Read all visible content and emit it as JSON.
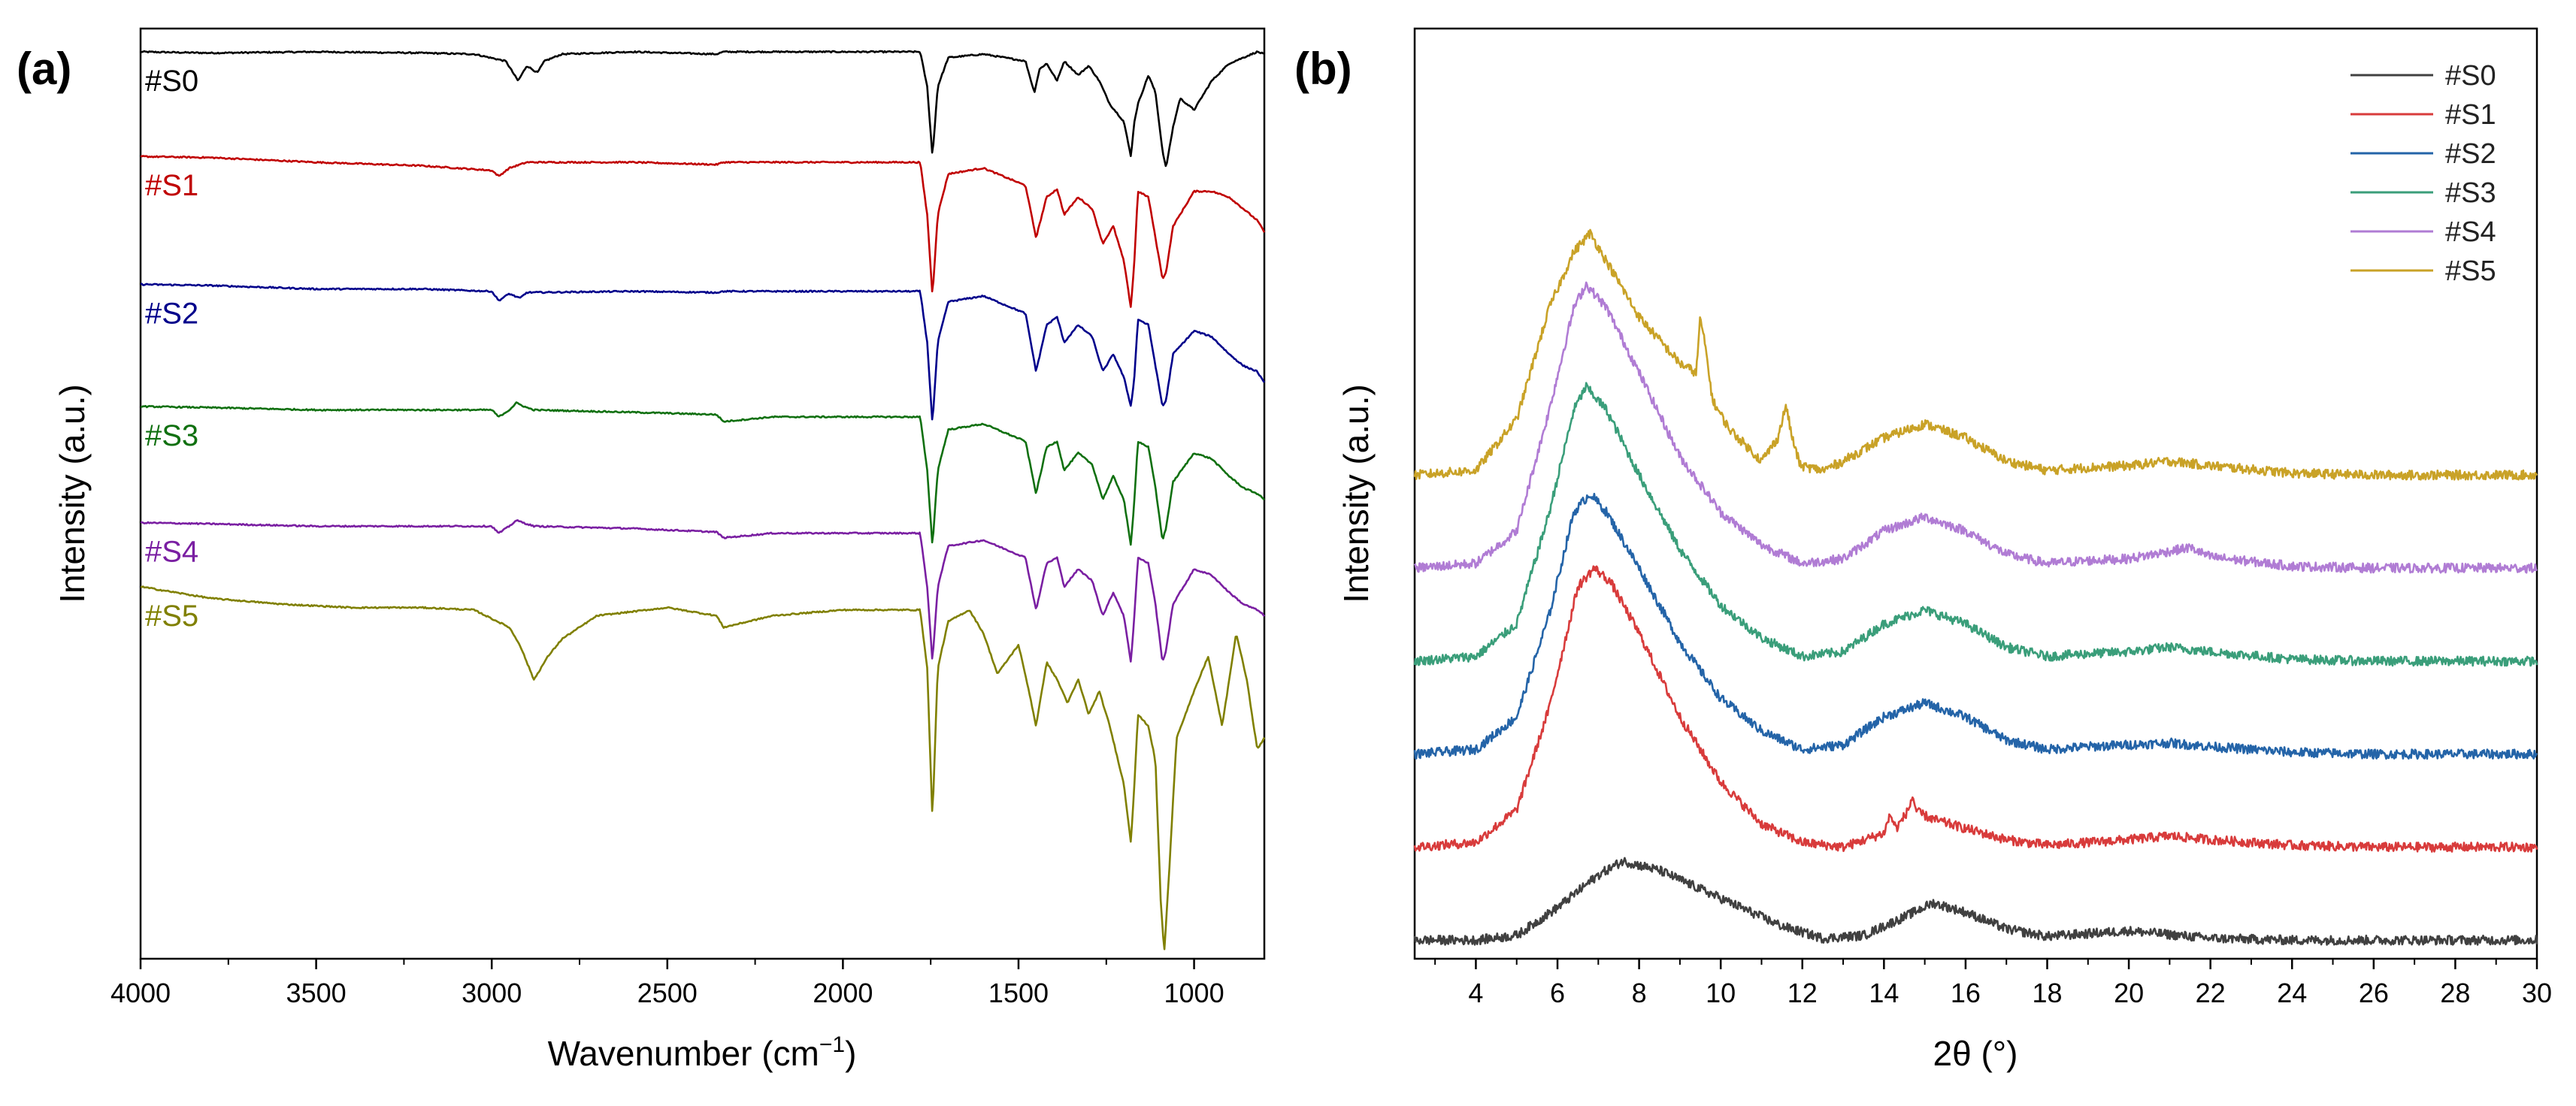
{
  "chart_data": [
    {
      "panel_label": "(a)",
      "type": "line",
      "title": "",
      "xlabel_main": "Wavenumber (cm",
      "xlabel_sup": "−1",
      "xlabel_end": ")",
      "ylabel": "Intensity (a.u.)",
      "xlim": [
        4000,
        800
      ],
      "x_reversed": true,
      "ylim": [
        0,
        8
      ],
      "y_ticks_visible": false,
      "xticks": [
        {
          "value": 4000,
          "label": "4000"
        },
        {
          "value": 3500,
          "label": "3500"
        },
        {
          "value": 3000,
          "label": "3000"
        },
        {
          "value": 2500,
          "label": "2500"
        },
        {
          "value": 2000,
          "label": "2000"
        },
        {
          "value": 1500,
          "label": "1500"
        },
        {
          "value": 1000,
          "label": "1000"
        }
      ],
      "grid": false,
      "legend": "inline labels at left",
      "series": [
        {
          "name": "#S0",
          "color": "#000000",
          "baseline": 7.8,
          "x": [
            4000,
            3800,
            3500,
            3200,
            3050,
            2960,
            2925,
            2900,
            2870,
            2850,
            2800,
            2600,
            2360,
            2340,
            2200,
            2000,
            1850,
            1780,
            1760,
            1745,
            1730,
            1700,
            1600,
            1480,
            1455,
            1440,
            1420,
            1390,
            1370,
            1330,
            1300,
            1270,
            1240,
            1200,
            1180,
            1170,
            1160,
            1130,
            1110,
            1090,
            1080,
            1060,
            1040,
            1000,
            950,
            900,
            860,
            820,
            800
          ],
          "y": [
            7.8,
            7.79,
            7.8,
            7.79,
            7.78,
            7.72,
            7.55,
            7.68,
            7.62,
            7.72,
            7.78,
            7.8,
            7.78,
            7.8,
            7.8,
            7.8,
            7.8,
            7.8,
            7.5,
            6.9,
            7.5,
            7.75,
            7.78,
            7.72,
            7.45,
            7.65,
            7.7,
            7.55,
            7.72,
            7.6,
            7.68,
            7.55,
            7.35,
            7.2,
            6.9,
            7.2,
            7.35,
            7.6,
            7.45,
            6.95,
            6.8,
            7.15,
            7.4,
            7.3,
            7.55,
            7.7,
            7.75,
            7.8,
            7.78
          ]
        },
        {
          "name": "#S1",
          "color": "#c00000",
          "baseline": 6.9,
          "x": [
            4000,
            3800,
            3500,
            3200,
            3000,
            2980,
            2950,
            2900,
            2600,
            2360,
            2340,
            2000,
            1850,
            1780,
            1760,
            1745,
            1730,
            1700,
            1600,
            1480,
            1450,
            1420,
            1390,
            1370,
            1330,
            1290,
            1260,
            1230,
            1200,
            1180,
            1170,
            1160,
            1130,
            1110,
            1090,
            1080,
            1060,
            1000,
            950,
            900,
            860,
            820,
            800
          ],
          "y": [
            6.9,
            6.89,
            6.85,
            6.82,
            6.78,
            6.73,
            6.8,
            6.85,
            6.85,
            6.83,
            6.85,
            6.85,
            6.85,
            6.85,
            6.4,
            5.7,
            6.4,
            6.75,
            6.8,
            6.65,
            6.2,
            6.55,
            6.62,
            6.4,
            6.55,
            6.45,
            6.15,
            6.3,
            6.0,
            5.6,
            6.0,
            6.6,
            6.55,
            6.2,
            5.85,
            5.9,
            6.3,
            6.6,
            6.6,
            6.55,
            6.45,
            6.35,
            6.25
          ]
        },
        {
          "name": "#S2",
          "color": "#00008b",
          "baseline": 5.8,
          "x": [
            4000,
            3800,
            3500,
            3200,
            3000,
            2980,
            2950,
            2920,
            2900,
            2600,
            2360,
            2340,
            2000,
            1850,
            1780,
            1760,
            1745,
            1730,
            1700,
            1600,
            1480,
            1450,
            1420,
            1390,
            1370,
            1330,
            1290,
            1260,
            1230,
            1200,
            1180,
            1170,
            1160,
            1130,
            1110,
            1090,
            1080,
            1060,
            1000,
            950,
            900,
            860,
            820,
            800
          ],
          "y": [
            5.8,
            5.79,
            5.76,
            5.76,
            5.74,
            5.66,
            5.72,
            5.68,
            5.73,
            5.74,
            5.73,
            5.74,
            5.74,
            5.74,
            5.74,
            5.3,
            4.6,
            5.3,
            5.65,
            5.7,
            5.55,
            5.05,
            5.45,
            5.52,
            5.3,
            5.45,
            5.35,
            5.05,
            5.2,
            5.0,
            4.75,
            5.0,
            5.5,
            5.45,
            5.1,
            4.75,
            4.8,
            5.2,
            5.4,
            5.35,
            5.2,
            5.1,
            5.05,
            4.95
          ]
        },
        {
          "name": "#S3",
          "color": "#107010",
          "baseline": 4.75,
          "x": [
            4000,
            3800,
            3500,
            3200,
            3000,
            2980,
            2950,
            2930,
            2900,
            2880,
            2600,
            2360,
            2340,
            2200,
            2000,
            1850,
            1780,
            1760,
            1745,
            1730,
            1700,
            1600,
            1480,
            1450,
            1420,
            1390,
            1370,
            1330,
            1290,
            1260,
            1230,
            1200,
            1180,
            1170,
            1160,
            1130,
            1110,
            1090,
            1080,
            1060,
            1000,
            950,
            900,
            860,
            820,
            800
          ],
          "y": [
            4.75,
            4.74,
            4.72,
            4.72,
            4.72,
            4.66,
            4.72,
            4.78,
            4.74,
            4.72,
            4.7,
            4.68,
            4.62,
            4.66,
            4.66,
            4.66,
            4.66,
            4.2,
            3.55,
            4.2,
            4.55,
            4.6,
            4.45,
            4.0,
            4.4,
            4.45,
            4.2,
            4.35,
            4.25,
            3.95,
            4.15,
            3.95,
            3.55,
            3.95,
            4.45,
            4.4,
            4.05,
            3.6,
            3.7,
            4.1,
            4.35,
            4.3,
            4.15,
            4.05,
            4.0,
            3.95
          ]
        },
        {
          "name": "#S4",
          "color": "#7a1fa2",
          "baseline": 3.75,
          "x": [
            4000,
            3800,
            3500,
            3200,
            3000,
            2980,
            2950,
            2930,
            2900,
            2880,
            2600,
            2360,
            2340,
            2200,
            2000,
            1850,
            1780,
            1760,
            1745,
            1730,
            1700,
            1600,
            1480,
            1450,
            1420,
            1390,
            1370,
            1330,
            1290,
            1260,
            1230,
            1200,
            1180,
            1170,
            1160,
            1130,
            1110,
            1090,
            1080,
            1060,
            1000,
            950,
            900,
            860,
            820,
            800
          ],
          "y": [
            3.75,
            3.74,
            3.72,
            3.72,
            3.72,
            3.66,
            3.72,
            3.77,
            3.74,
            3.72,
            3.7,
            3.67,
            3.62,
            3.66,
            3.66,
            3.66,
            3.66,
            3.2,
            2.55,
            3.2,
            3.55,
            3.6,
            3.45,
            3.0,
            3.4,
            3.45,
            3.2,
            3.35,
            3.25,
            2.95,
            3.15,
            2.95,
            2.55,
            2.95,
            3.45,
            3.4,
            3.05,
            2.55,
            2.65,
            3.05,
            3.35,
            3.3,
            3.15,
            3.05,
            3.0,
            2.95
          ]
        },
        {
          "name": "#S5",
          "color": "#808000",
          "baseline": 3.2,
          "x": [
            4000,
            3900,
            3800,
            3600,
            3400,
            3200,
            3050,
            2950,
            2920,
            2880,
            2840,
            2800,
            2700,
            2500,
            2360,
            2340,
            2200,
            2000,
            1850,
            1780,
            1760,
            1745,
            1730,
            1700,
            1640,
            1600,
            1560,
            1500,
            1470,
            1450,
            1420,
            1390,
            1360,
            1330,
            1300,
            1270,
            1240,
            1200,
            1180,
            1170,
            1160,
            1130,
            1110,
            1095,
            1085,
            1070,
            1050,
            1000,
            960,
            920,
            880,
            850,
            820,
            800
          ],
          "y": [
            3.2,
            3.15,
            3.1,
            3.05,
            3.02,
            3.02,
            3.0,
            2.85,
            2.7,
            2.4,
            2.6,
            2.75,
            2.95,
            3.02,
            2.95,
            2.85,
            2.95,
            3.0,
            3.0,
            3.0,
            2.5,
            1.2,
            2.5,
            2.9,
            3.0,
            2.8,
            2.45,
            2.7,
            2.3,
            2.0,
            2.55,
            2.4,
            2.2,
            2.4,
            2.1,
            2.3,
            2.0,
            1.5,
            1.0,
            1.5,
            2.1,
            2.0,
            1.7,
            0.5,
            0.05,
            0.8,
            1.9,
            2.3,
            2.6,
            2.0,
            2.8,
            2.4,
            1.8,
            1.9
          ]
        }
      ]
    },
    {
      "panel_label": "(b)",
      "type": "line",
      "title": "",
      "xlabel": "2θ (°)",
      "ylabel": "Intensity (a.u.)",
      "xlim": [
        2.5,
        30
      ],
      "ylim": [
        0,
        10
      ],
      "y_ticks_visible": false,
      "xticks": [
        {
          "value": 4,
          "label": "4"
        },
        {
          "value": 6,
          "label": "6"
        },
        {
          "value": 8,
          "label": "8"
        },
        {
          "value": 10,
          "label": "10"
        },
        {
          "value": 12,
          "label": "12"
        },
        {
          "value": 14,
          "label": "14"
        },
        {
          "value": 16,
          "label": "16"
        },
        {
          "value": 18,
          "label": "18"
        },
        {
          "value": 20,
          "label": "20"
        },
        {
          "value": 22,
          "label": "22"
        },
        {
          "value": 24,
          "label": "24"
        },
        {
          "value": 26,
          "label": "26"
        },
        {
          "value": 28,
          "label": "28"
        },
        {
          "value": 30,
          "label": "30"
        }
      ],
      "grid": false,
      "legend": "top-right",
      "series": [
        {
          "name": "#S0",
          "color": "#404040",
          "baseline": 0.2,
          "x": [
            2.5,
            4,
            5,
            6,
            7,
            7.6,
            8.5,
            9.5,
            10.5,
            11.5,
            12.5,
            13.5,
            14.5,
            15.2,
            16,
            17,
            18,
            20,
            22,
            24,
            26,
            28,
            30
          ],
          "y": [
            0.2,
            0.2,
            0.25,
            0.55,
            0.9,
            1.05,
            0.95,
            0.75,
            0.55,
            0.35,
            0.22,
            0.25,
            0.45,
            0.6,
            0.5,
            0.32,
            0.24,
            0.3,
            0.22,
            0.2,
            0.2,
            0.2,
            0.2
          ]
        },
        {
          "name": "#S1",
          "color": "#d83b3b",
          "baseline": 1.2,
          "x": [
            2.5,
            4,
            5,
            5.8,
            6.5,
            6.9,
            7.3,
            8,
            9,
            10,
            11,
            12,
            13,
            14,
            14.15,
            14.3,
            14.6,
            14.7,
            14.8,
            15.2,
            16,
            17,
            18,
            19,
            20,
            21,
            22,
            24,
            26,
            28,
            30
          ],
          "y": [
            1.2,
            1.25,
            1.6,
            2.7,
            4.0,
            4.2,
            4.05,
            3.5,
            2.6,
            1.9,
            1.45,
            1.25,
            1.2,
            1.35,
            1.55,
            1.4,
            1.6,
            1.75,
            1.58,
            1.5,
            1.4,
            1.28,
            1.22,
            1.25,
            1.28,
            1.32,
            1.28,
            1.22,
            1.2,
            1.2,
            1.2
          ]
        },
        {
          "name": "#S2",
          "color": "#2464a8",
          "baseline": 2.2,
          "x": [
            2.5,
            4,
            5,
            5.8,
            6.4,
            6.8,
            7.2,
            8,
            9,
            10,
            11,
            12,
            13,
            14,
            15,
            16,
            17,
            18,
            19,
            20,
            21,
            22,
            24,
            26,
            28,
            30
          ],
          "y": [
            2.2,
            2.25,
            2.6,
            3.7,
            4.8,
            5.0,
            4.8,
            4.2,
            3.4,
            2.8,
            2.45,
            2.25,
            2.3,
            2.6,
            2.75,
            2.6,
            2.35,
            2.25,
            2.28,
            2.3,
            2.32,
            2.28,
            2.22,
            2.2,
            2.2,
            2.2
          ]
        },
        {
          "name": "#S3",
          "color": "#3a9e7a",
          "baseline": 3.2,
          "x": [
            2.5,
            4,
            5,
            5.8,
            6.4,
            6.7,
            7.2,
            8,
            9,
            10,
            11,
            12,
            13,
            14,
            15,
            16,
            17,
            18,
            19,
            20,
            21,
            22,
            24,
            26,
            28,
            30
          ],
          "y": [
            3.2,
            3.25,
            3.6,
            4.8,
            5.9,
            6.15,
            5.9,
            5.2,
            4.4,
            3.8,
            3.45,
            3.25,
            3.3,
            3.6,
            3.75,
            3.6,
            3.35,
            3.25,
            3.28,
            3.3,
            3.35,
            3.3,
            3.22,
            3.2,
            3.2,
            3.2
          ]
        },
        {
          "name": "#S4",
          "color": "#b07cd4",
          "baseline": 4.2,
          "x": [
            2.5,
            4,
            5,
            5.8,
            6.4,
            6.7,
            7.2,
            8,
            9,
            10,
            11,
            12,
            13,
            14,
            15,
            16,
            17,
            18,
            19,
            20,
            21,
            21.5,
            22,
            24,
            26,
            28,
            30
          ],
          "y": [
            4.2,
            4.25,
            4.6,
            5.9,
            7.0,
            7.25,
            7.0,
            6.3,
            5.4,
            4.8,
            4.45,
            4.25,
            4.3,
            4.6,
            4.75,
            4.6,
            4.35,
            4.25,
            4.28,
            4.3,
            4.38,
            4.42,
            4.32,
            4.22,
            4.2,
            4.2,
            4.2
          ]
        },
        {
          "name": "#S5",
          "color": "#c9a227",
          "baseline": 5.2,
          "x": [
            2.5,
            4,
            5,
            5.8,
            6.4,
            6.8,
            7.2,
            8,
            9,
            9.4,
            9.5,
            9.65,
            9.8,
            10.2,
            11,
            11.4,
            11.6,
            11.75,
            11.95,
            12.5,
            13,
            14,
            15,
            16,
            17,
            18,
            19,
            20,
            21,
            22,
            24,
            26,
            28,
            30
          ],
          "y": [
            5.2,
            5.25,
            5.8,
            7.0,
            7.6,
            7.8,
            7.5,
            6.9,
            6.4,
            6.3,
            6.9,
            6.5,
            6.0,
            5.7,
            5.35,
            5.6,
            5.95,
            5.6,
            5.3,
            5.25,
            5.35,
            5.6,
            5.75,
            5.6,
            5.35,
            5.25,
            5.28,
            5.3,
            5.35,
            5.3,
            5.22,
            5.2,
            5.2,
            5.2
          ]
        }
      ]
    }
  ]
}
